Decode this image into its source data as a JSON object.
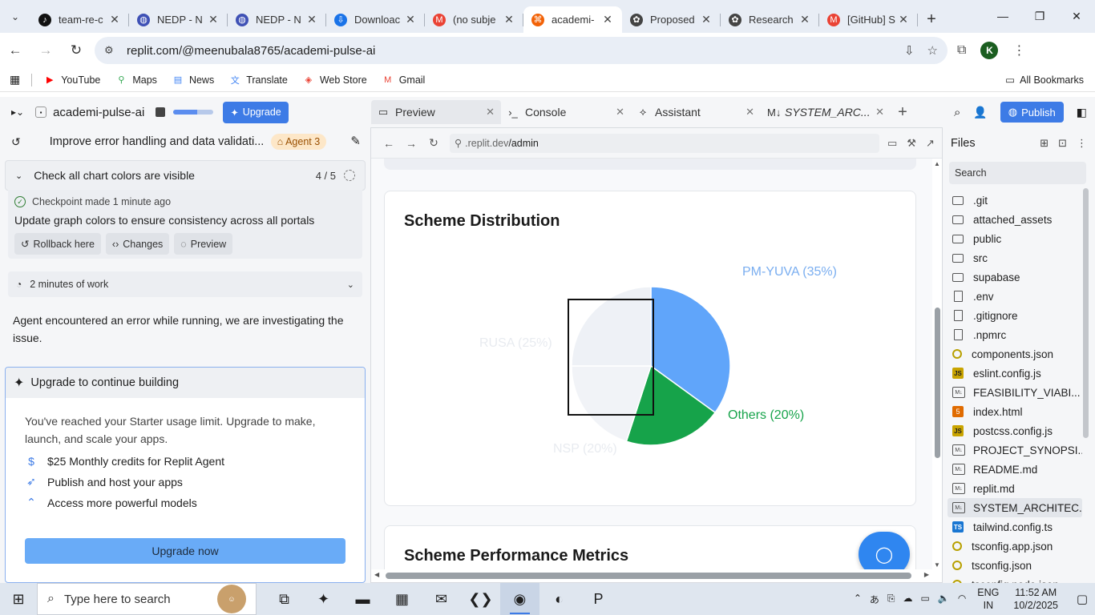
{
  "browser": {
    "tabs": [
      {
        "label": "team-re-c",
        "icon": "tiktok-icon",
        "color": "#111111",
        "active": false
      },
      {
        "label": "NEDP - N",
        "icon": "globe-icon",
        "color": "#3f51b5",
        "active": false
      },
      {
        "label": "NEDP - N",
        "icon": "globe-icon",
        "color": "#3f51b5",
        "active": false
      },
      {
        "label": "Downloac",
        "icon": "download-icon",
        "color": "#1a73e8",
        "active": false
      },
      {
        "label": "(no subje",
        "icon": "gmail-icon",
        "color": "#ea4335",
        "active": false
      },
      {
        "label": "academi-",
        "icon": "replit-icon",
        "color": "#f26207",
        "active": true
      },
      {
        "label": "Proposed",
        "icon": "chatgpt-icon",
        "color": "#444444",
        "active": false
      },
      {
        "label": "Research",
        "icon": "chatgpt-icon",
        "color": "#444444",
        "active": false
      },
      {
        "label": "[GitHub] S",
        "icon": "gmail-icon",
        "color": "#ea4335",
        "active": false
      }
    ],
    "url": "replit.com/@meenubala8765/academi-pulse-ai",
    "bookmarks": [
      {
        "label": "YouTube",
        "icon": "youtube-icon",
        "color": "#ff0000"
      },
      {
        "label": "Maps",
        "icon": "maps-icon",
        "color": "#34a853"
      },
      {
        "label": "News",
        "icon": "news-icon",
        "color": "#4285f4"
      },
      {
        "label": "Translate",
        "icon": "translate-icon",
        "color": "#4285f4"
      },
      {
        "label": "Web Store",
        "icon": "webstore-icon",
        "color": "#ea4335"
      },
      {
        "label": "Gmail",
        "icon": "gmail-icon",
        "color": "#ea4335"
      }
    ],
    "all_bookmarks": "All Bookmarks",
    "profile_initial": "K"
  },
  "workspace": {
    "repl_name": "academi-pulse-ai",
    "usage_progress": 0.6,
    "upgrade_label": "Upgrade",
    "tabs": [
      {
        "label": "Preview",
        "icon": "preview-icon",
        "active": true
      },
      {
        "label": "Console",
        "icon": "console-icon",
        "active": false
      },
      {
        "label": "Assistant",
        "icon": "assistant-icon",
        "active": false
      },
      {
        "label": "SYSTEM_ARC...",
        "icon": "markdown-icon",
        "active": false
      }
    ],
    "publish_label": "Publish"
  },
  "agent": {
    "thread_title": "Improve error handling and data validati...",
    "agent_badge": "Agent 3",
    "task": {
      "label": "Check all chart colors are visible",
      "count": "4 / 5"
    },
    "checkpoint": {
      "header": "Checkpoint made 1 minute ago",
      "message": "Update graph colors to ensure consistency across all portals",
      "actions": [
        "Rollback here",
        "Changes",
        "Preview"
      ]
    },
    "work_summary": "2 minutes of work",
    "error_message": "Agent encountered an error while running, we are investigating the issue.",
    "upgrade_card": {
      "title": "Upgrade to continue building",
      "description": "You've reached your Starter usage limit. Upgrade to make, launch, and scale your apps.",
      "features": [
        {
          "label": "$25 Monthly credits for Replit Agent",
          "icon": "dollar-icon"
        },
        {
          "label": "Publish and host your apps",
          "icon": "rocket-icon"
        },
        {
          "label": "Access more powerful models",
          "icon": "chevrons-up-icon"
        }
      ],
      "button": "Upgrade now"
    }
  },
  "preview": {
    "url_host": ".replit.dev",
    "url_path": "/admin",
    "chart_card_title": "Scheme Distribution",
    "metrics_title": "Scheme Performance Metrics",
    "chart_data": {
      "type": "pie",
      "title": "Scheme Distribution",
      "slices": [
        {
          "label": "PM-YUVA (35%)",
          "value": 35,
          "color": "#60a5fa",
          "label_color": "#7aaef0"
        },
        {
          "label": "Others (20%)",
          "value": 20,
          "color": "#16a34a",
          "label_color": "#16a34a"
        },
        {
          "label": "NSP (20%)",
          "value": 20,
          "color": "#f1f3f7",
          "label_color": "#e8ebf0"
        },
        {
          "label": "RUSA (25%)",
          "value": 25,
          "color": "#eef1f6",
          "label_color": "#e8ebf0"
        }
      ],
      "legend": "none"
    }
  },
  "files": {
    "title": "Files",
    "search_placeholder": "Search",
    "items": [
      {
        "name": ".git",
        "type": "folder"
      },
      {
        "name": "attached_assets",
        "type": "folder"
      },
      {
        "name": "public",
        "type": "folder"
      },
      {
        "name": "src",
        "type": "folder"
      },
      {
        "name": "supabase",
        "type": "folder"
      },
      {
        "name": ".env",
        "type": "file"
      },
      {
        "name": ".gitignore",
        "type": "file"
      },
      {
        "name": ".npmrc",
        "type": "file"
      },
      {
        "name": "components.json",
        "type": "json"
      },
      {
        "name": "eslint.config.js",
        "type": "js"
      },
      {
        "name": "FEASIBILITY_VIABI...",
        "type": "md"
      },
      {
        "name": "index.html",
        "type": "html"
      },
      {
        "name": "postcss.config.js",
        "type": "js"
      },
      {
        "name": "PROJECT_SYNOPSI...",
        "type": "md"
      },
      {
        "name": "README.md",
        "type": "md"
      },
      {
        "name": "replit.md",
        "type": "md"
      },
      {
        "name": "SYSTEM_ARCHITEC...",
        "type": "md",
        "selected": true
      },
      {
        "name": "tailwind.config.ts",
        "type": "ts"
      },
      {
        "name": "tsconfig.app.json",
        "type": "json"
      },
      {
        "name": "tsconfig.json",
        "type": "json"
      },
      {
        "name": "tsconfig.node.json",
        "type": "json"
      }
    ]
  },
  "taskbar": {
    "search_placeholder": "Type here to search",
    "apps": [
      {
        "name": "task-view-icon",
        "glyph": "⧉"
      },
      {
        "name": "copilot-icon",
        "glyph": "✦"
      },
      {
        "name": "file-explorer-icon",
        "glyph": "▬"
      },
      {
        "name": "ms-store-icon",
        "glyph": "▦"
      },
      {
        "name": "outlook-icon",
        "glyph": "✉"
      },
      {
        "name": "vscode-icon",
        "glyph": "❮❯"
      },
      {
        "name": "chrome-icon",
        "glyph": "◉",
        "active": true
      },
      {
        "name": "edge-icon",
        "glyph": "◐"
      },
      {
        "name": "powerpoint-icon",
        "glyph": "P"
      }
    ],
    "lang_top": "ENG",
    "lang_bottom": "IN",
    "time": "11:52 AM",
    "date": "10/2/2025"
  }
}
